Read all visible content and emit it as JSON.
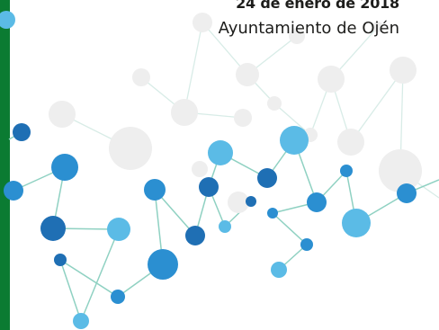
{
  "header": {
    "date": "24 de enero de 2018",
    "organization": "Ayuntamiento de Ojén"
  },
  "colors": {
    "green_bar": "#0b7b32",
    "blue_dark": "#1f6fb4",
    "blue_mid": "#2b8fd1",
    "blue_light": "#5bbbe6",
    "grey_node": "#eeeeee",
    "line": "#8fd1c2"
  },
  "decoration": {
    "description_icon": "molecule-network-graphic"
  }
}
